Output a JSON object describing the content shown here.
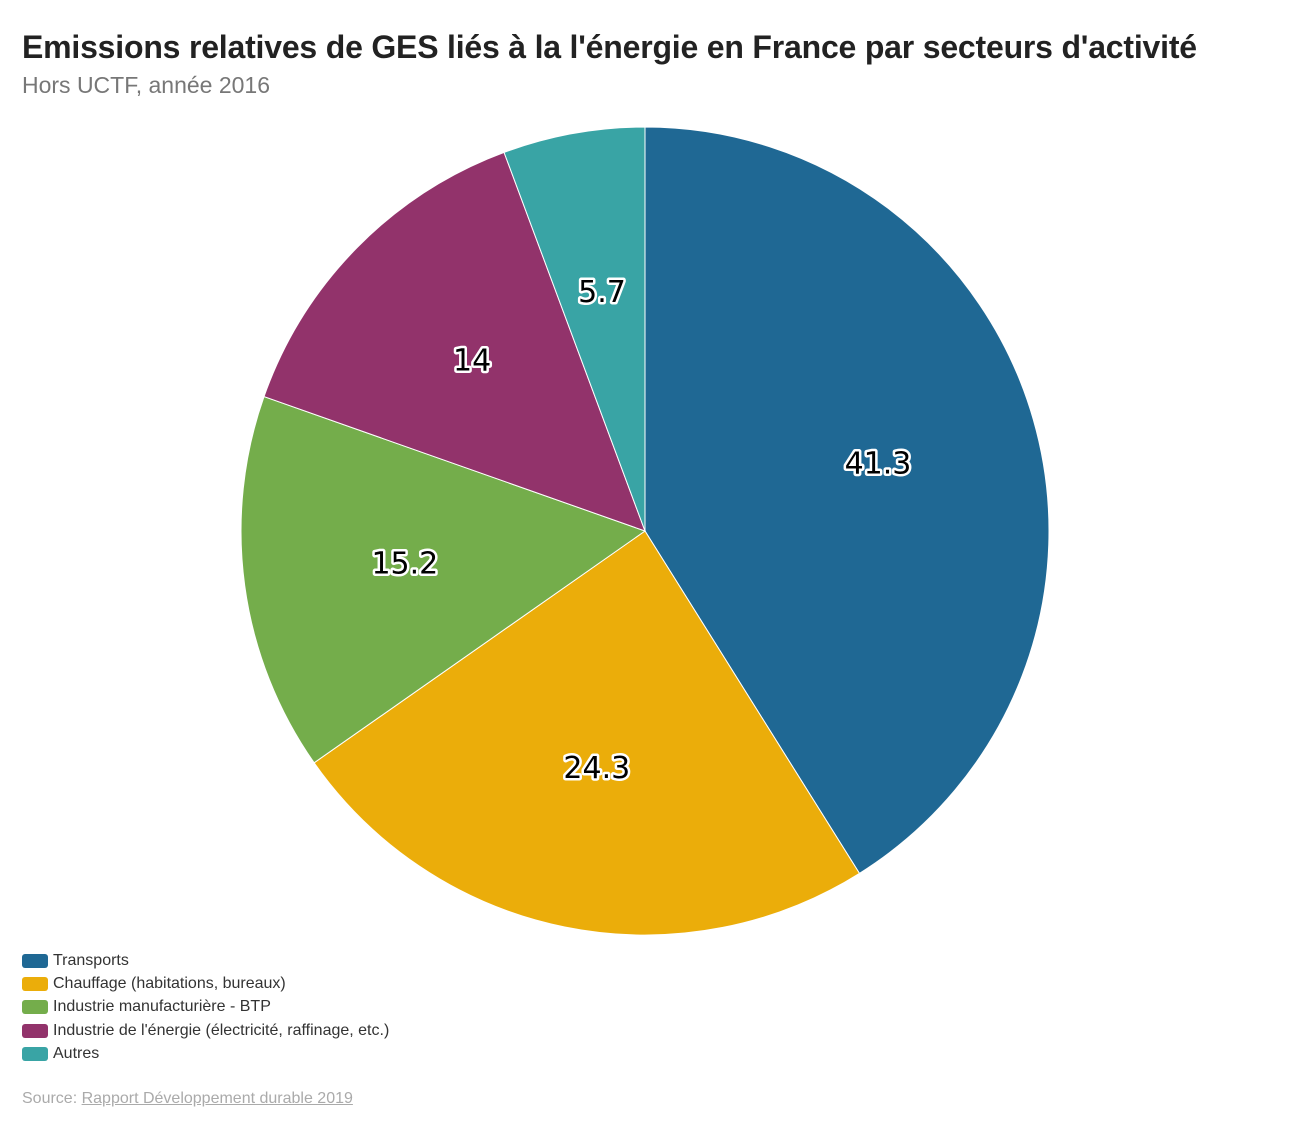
{
  "chart_data": {
    "type": "pie",
    "title": "Emissions relatives de GES liés à la l'énergie en France par secteurs d'activité",
    "subtitle": "Hors UCTF, année 2016",
    "categories": [
      "Transports",
      "Chauffage (habitations, bureaux)",
      "Industrie manufacturière - BTP",
      "Industrie de l'énergie (électricité, raffinage, etc.)",
      "Autres"
    ],
    "values": [
      41.3,
      24.3,
      15.2,
      14,
      5.7
    ],
    "value_labels": [
      "41.3",
      "24.3",
      "15.2",
      "14",
      "5.7"
    ],
    "colors": [
      "#1f6894",
      "#ebad0a",
      "#74ad4b",
      "#92336b",
      "#39a4a5"
    ],
    "start_angle": "12 o'clock",
    "direction": "clockwise",
    "legend_position": "bottom-left"
  },
  "source": {
    "prefix": "Source:",
    "link_text": "Rapport Développement durable 2019"
  }
}
